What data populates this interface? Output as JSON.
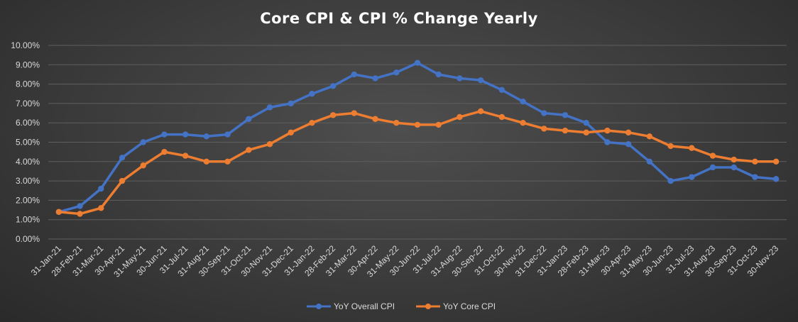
{
  "chart_data": {
    "type": "line",
    "title": "Core CPI & CPI % Change Yearly",
    "xlabel": "",
    "ylabel": "",
    "ylim": [
      0,
      10
    ],
    "y_ticks": [
      "0.00%",
      "1.00%",
      "2.00%",
      "3.00%",
      "4.00%",
      "5.00%",
      "6.00%",
      "7.00%",
      "8.00%",
      "9.00%",
      "10.00%"
    ],
    "grid": "horizontal",
    "legend_position": "bottom",
    "categories": [
      "31-Jan-21",
      "28-Feb-21",
      "31-Mar-21",
      "30-Apr-21",
      "31-May-21",
      "30-Jun-21",
      "31-Jul-21",
      "31-Aug-21",
      "30-Sep-21",
      "31-Oct-21",
      "30-Nov-21",
      "31-Dec-21",
      "31-Jan-22",
      "28-Feb-22",
      "31-Mar-22",
      "30-Apr-22",
      "31-May-22",
      "30-Jun-22",
      "31-Jul-22",
      "31-Aug-22",
      "30-Sep-22",
      "31-Oct-22",
      "30-Nov-22",
      "31-Dec-22",
      "31-Jan-23",
      "28-Feb-23",
      "31-Mar-23",
      "30-Apr-23",
      "31-May-23",
      "30-Jun-23",
      "31-Jul-23",
      "31-Aug-23",
      "30-Sep-23",
      "31-Oct-23",
      "30-Nov-23"
    ],
    "series": [
      {
        "name": "YoY Overall CPI",
        "color": "#4472c4",
        "values": [
          1.4,
          1.7,
          2.6,
          4.2,
          5.0,
          5.4,
          5.4,
          5.3,
          5.4,
          6.2,
          6.8,
          7.0,
          7.5,
          7.9,
          8.5,
          8.3,
          8.6,
          9.1,
          8.5,
          8.3,
          8.2,
          7.7,
          7.1,
          6.5,
          6.4,
          6.0,
          5.0,
          4.9,
          4.0,
          3.0,
          3.2,
          3.7,
          3.7,
          3.2,
          3.1
        ]
      },
      {
        "name": "YoY Core CPI",
        "color": "#ed7d31",
        "values": [
          1.4,
          1.3,
          1.6,
          3.0,
          3.8,
          4.5,
          4.3,
          4.0,
          4.0,
          4.6,
          4.9,
          5.5,
          6.0,
          6.4,
          6.5,
          6.2,
          6.0,
          5.9,
          5.9,
          6.3,
          6.6,
          6.3,
          6.0,
          5.7,
          5.6,
          5.5,
          5.6,
          5.5,
          5.3,
          4.8,
          4.7,
          4.3,
          4.1,
          4.0,
          4.0
        ]
      }
    ]
  }
}
